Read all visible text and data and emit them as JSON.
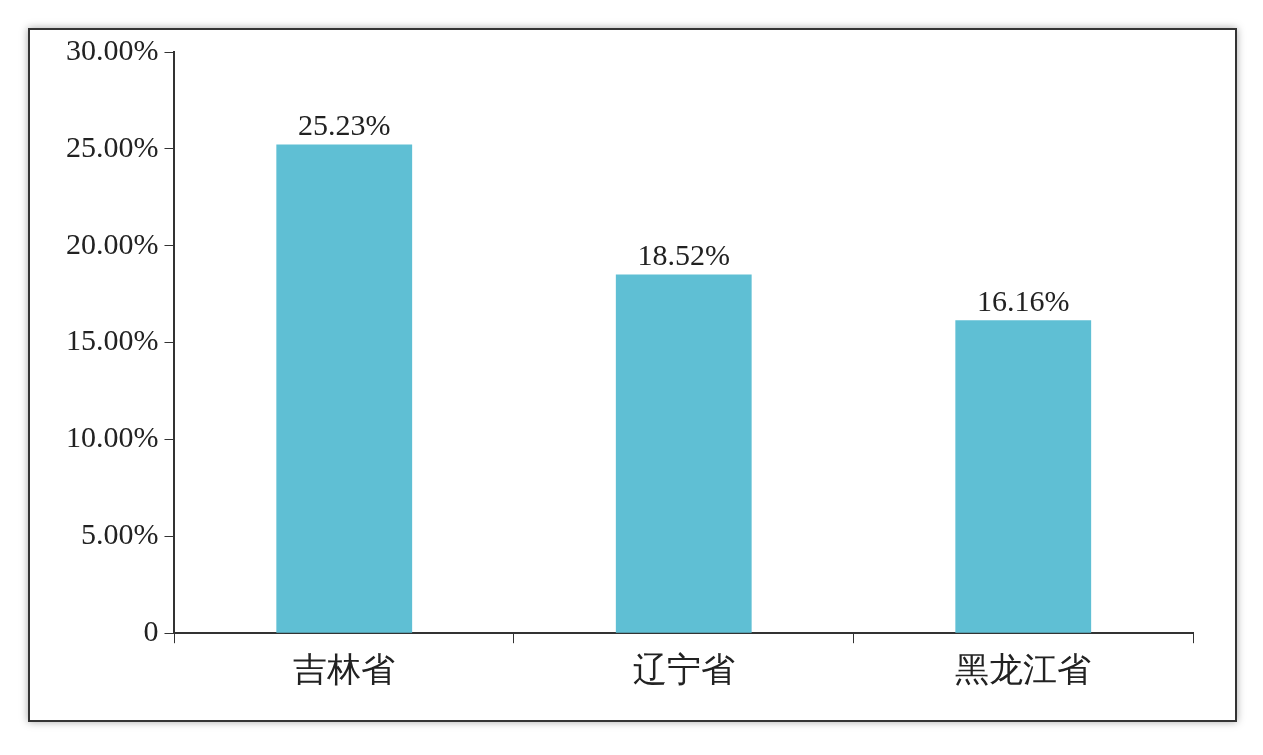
{
  "chart_data": {
    "type": "bar",
    "categories": [
      "吉林省",
      "辽宁省",
      "黑龙江省"
    ],
    "values": [
      25.23,
      18.52,
      16.16
    ],
    "value_labels": [
      "25.23%",
      "18.52%",
      "16.16%"
    ],
    "color": "#5fbfd4",
    "ylim": [
      0,
      30
    ],
    "yticks": [
      0,
      {
        "value": 5,
        "label": "5.00%"
      },
      {
        "value": 10,
        "label": "10.00%"
      },
      {
        "value": 15,
        "label": "15.00%"
      },
      {
        "value": 20,
        "label": "20.00%"
      },
      {
        "value": 25,
        "label": "25.00%"
      },
      {
        "value": 30,
        "label": "30.00%"
      }
    ]
  }
}
